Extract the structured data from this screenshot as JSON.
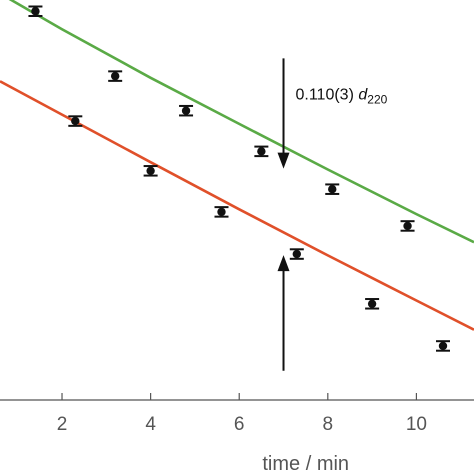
{
  "chart_data": {
    "type": "scatter",
    "title": "",
    "xlabel": "time / min",
    "ylabel": "",
    "xlim": [
      0.6,
      11.3
    ],
    "ylim": [
      -0.135,
      0.05
    ],
    "grid": false,
    "x_ticks": [
      {
        "value": 2,
        "label": "2"
      },
      {
        "value": 4,
        "label": "4"
      },
      {
        "value": 6,
        "label": "6"
      },
      {
        "value": 8,
        "label": "8"
      },
      {
        "value": 10,
        "label": "10"
      }
    ],
    "series": [
      {
        "color": "#5aaa46",
        "points": [
          {
            "x": 1.4,
            "y": 0.0448,
            "err": 0.0022
          },
          {
            "x": 3.2,
            "y": 0.0148,
            "err": 0.0022
          },
          {
            "x": 4.8,
            "y": -0.0012,
            "err": 0.0022
          },
          {
            "x": 6.5,
            "y": -0.02,
            "err": 0.0022
          },
          {
            "x": 8.1,
            "y": -0.0375,
            "err": 0.0022
          },
          {
            "x": 9.8,
            "y": -0.0545,
            "err": 0.0022
          }
        ],
        "fit": [
          {
            "x": 0.6,
            "y": 0.053
          },
          {
            "x": 2.0,
            "y": 0.0365
          },
          {
            "x": 4.0,
            "y": 0.014
          },
          {
            "x": 6.0,
            "y": -0.0073
          },
          {
            "x": 8.0,
            "y": -0.0284
          },
          {
            "x": 10.0,
            "y": -0.049
          },
          {
            "x": 11.3,
            "y": -0.062
          }
        ]
      },
      {
        "color": "#e0502a",
        "points": [
          {
            "x": 2.3,
            "y": -0.006,
            "err": 0.0022
          },
          {
            "x": 4.0,
            "y": -0.029,
            "err": 0.0022
          },
          {
            "x": 5.6,
            "y": -0.048,
            "err": 0.0022
          },
          {
            "x": 7.3,
            "y": -0.0675,
            "err": 0.0022
          },
          {
            "x": 9.0,
            "y": -0.0905,
            "err": 0.0022
          },
          {
            "x": 10.6,
            "y": -0.11,
            "err": 0.0022
          }
        ],
        "fit": [
          {
            "x": 0.6,
            "y": 0.0124
          },
          {
            "x": 2.0,
            "y": -0.003
          },
          {
            "x": 4.0,
            "y": -0.025
          },
          {
            "x": 6.0,
            "y": -0.0468
          },
          {
            "x": 8.0,
            "y": -0.0681
          },
          {
            "x": 10.0,
            "y": -0.089
          },
          {
            "x": 11.3,
            "y": -0.1025
          }
        ]
      }
    ],
    "annotation": {
      "text_main": "0.110(3) ",
      "text_italic": "d",
      "text_sub": "220",
      "arrow_x": 7.0,
      "upper_arrow_from_y": 0.023,
      "upper_arrow_to_y": -0.028,
      "lower_arrow_from_y": -0.1215,
      "lower_arrow_to_y": -0.068
    }
  }
}
